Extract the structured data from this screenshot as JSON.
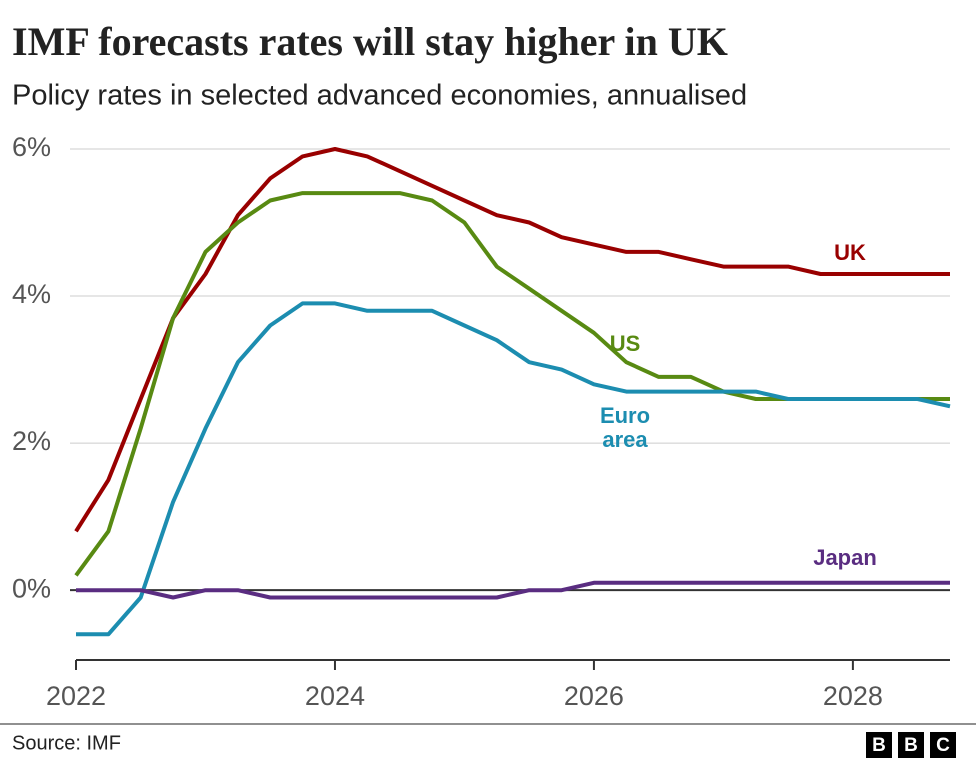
{
  "chart_data": {
    "type": "line",
    "title": "IMF forecasts rates will stay higher in UK",
    "subtitle": "Policy rates in selected advanced economies, annualised",
    "source": "Source: IMF",
    "logo": [
      "B",
      "B",
      "C"
    ],
    "x": [
      2022,
      2022.25,
      2022.5,
      2022.75,
      2023,
      2023.25,
      2023.5,
      2023.75,
      2024,
      2024.25,
      2024.5,
      2024.75,
      2025,
      2025.25,
      2025.5,
      2025.75,
      2026,
      2026.25,
      2026.5,
      2026.75,
      2027,
      2027.25,
      2027.5,
      2027.75,
      2028,
      2028.25,
      2028.5,
      2028.75
    ],
    "xlim": [
      2022,
      2028.75
    ],
    "xticks": [
      2022,
      2024,
      2026,
      2028
    ],
    "ylim": [
      -0.95,
      6
    ],
    "yticks": [
      {
        "value": 0,
        "label": "0%"
      },
      {
        "value": 2,
        "label": "2%"
      },
      {
        "value": 4,
        "label": "4%"
      },
      {
        "value": 6,
        "label": "6%"
      }
    ],
    "grid": true,
    "series": [
      {
        "name": "UK",
        "color": "#990000",
        "values": [
          0.8,
          1.5,
          2.6,
          3.7,
          4.3,
          5.1,
          5.6,
          5.9,
          6.0,
          5.9,
          5.7,
          5.5,
          5.3,
          5.1,
          5.0,
          4.8,
          4.7,
          4.6,
          4.6,
          4.5,
          4.4,
          4.4,
          4.4,
          4.3,
          4.3,
          4.3,
          4.3,
          4.3
        ]
      },
      {
        "name": "US",
        "color": "#588a12",
        "values": [
          0.2,
          0.8,
          2.2,
          3.7,
          4.6,
          5.0,
          5.3,
          5.4,
          5.4,
          5.4,
          5.4,
          5.3,
          5.0,
          4.4,
          4.1,
          3.8,
          3.5,
          3.1,
          2.9,
          2.9,
          2.7,
          2.6,
          2.6,
          2.6,
          2.6,
          2.6,
          2.6,
          2.6
        ]
      },
      {
        "name": "Euro area",
        "color": "#1c8db0",
        "values": [
          -0.6,
          -0.6,
          -0.1,
          1.2,
          2.2,
          3.1,
          3.6,
          3.9,
          3.9,
          3.8,
          3.8,
          3.8,
          3.6,
          3.4,
          3.1,
          3.0,
          2.8,
          2.7,
          2.7,
          2.7,
          2.7,
          2.7,
          2.6,
          2.6,
          2.6,
          2.6,
          2.6,
          2.5
        ]
      },
      {
        "name": "Japan",
        "color": "#5a2d81",
        "values": [
          0,
          0,
          0,
          -0.1,
          0,
          0,
          -0.1,
          -0.1,
          -0.1,
          -0.1,
          -0.1,
          -0.1,
          -0.1,
          -0.1,
          0,
          0,
          0.1,
          0.1,
          0.1,
          0.1,
          0.1,
          0.1,
          0.1,
          0.1,
          0.1,
          0.1,
          0.1,
          0.1
        ]
      }
    ]
  }
}
